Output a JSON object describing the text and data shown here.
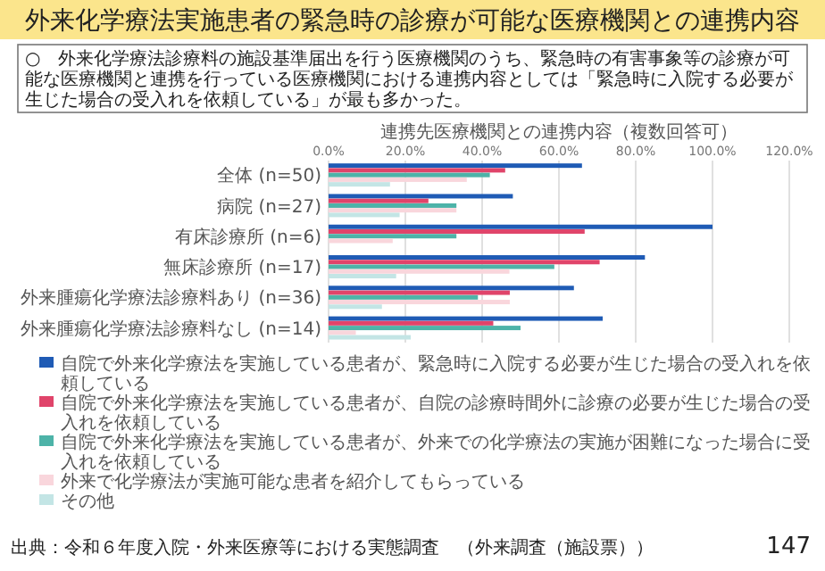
{
  "chart_data": {
    "type": "bar",
    "orientation": "horizontal",
    "title": "外来化学療法実施患者の緊急時の診療が可能な医療機関との連携内容",
    "subtitle": "連携先医療機関との連携内容（複数回答可）",
    "annotations": [
      "○　外来化学療法診療料の施設基準届出を行う医療機関のうち、緊急時の有害事象等の診療が可能な医療機関と連携を行っている医療機関における連携内容としては「緊急時に入院する必要が生じた場合の受入れを依頼している」が最も多かった。",
      "出典：令和６年度入院・外来医療等における実態調査　（外来調査（施設票））",
      "147"
    ],
    "categories": [
      "全体 (n=50)",
      "病院 (n=27)",
      "有床診療所 (n=6)",
      "無床診療所 (n=17)",
      "外来腫瘍化学療法診療料あり (n=36)",
      "外来腫瘍化学療法診療料なし (n=14)"
    ],
    "series": [
      {
        "name": "自院で外来化学療法を実施している患者が、緊急時に入院する必要が生じた場合の受入れを依頼している",
        "color": "#1f5bb5",
        "values": [
          66,
          48,
          100,
          82.4,
          63.9,
          71.4
        ]
      },
      {
        "name": "自院で外来化学療法を実施している患者が、自院の診療時間外に診療の必要が生じた場合の受入れを依頼している",
        "color": "#e0446a",
        "values": [
          46,
          26,
          66.7,
          70.6,
          47.2,
          42.9
        ]
      },
      {
        "name": "自院で外来化学療法を実施している患者が、外来での化学療法の実施が困難になった場合に受入れを依頼している",
        "color": "#4db3a8",
        "values": [
          42,
          33.3,
          33.3,
          58.8,
          38.9,
          50
        ]
      },
      {
        "name": "外来で化学療法が実施可能な患者を紹介してもらっている",
        "color": "#f9d6dc",
        "values": [
          36,
          33.3,
          16.7,
          47.1,
          47.2,
          7.1
        ]
      },
      {
        "name": "その他",
        "color": "#c3e5e5",
        "values": [
          16,
          18.5,
          0,
          17.6,
          13.9,
          21.4
        ]
      }
    ],
    "xlim": [
      0,
      120
    ],
    "xticks": [
      {
        "value": 0,
        "label": "0.0%"
      },
      {
        "value": 20,
        "label": "20.0%"
      },
      {
        "value": 40,
        "label": "40.0%"
      },
      {
        "value": 60,
        "label": "60.0%"
      },
      {
        "value": 80,
        "label": "80.0%"
      },
      {
        "value": 100,
        "label": "100.0%"
      },
      {
        "value": 120,
        "label": "120.0%"
      }
    ],
    "grid": "x",
    "legend": "bottom"
  }
}
